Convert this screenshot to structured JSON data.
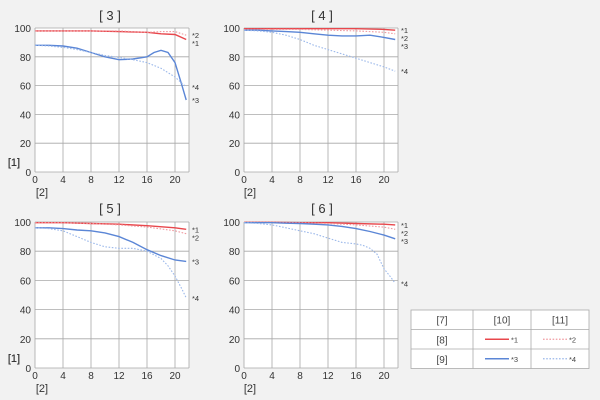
{
  "charts_common": {
    "x_axis_label": "[2]",
    "y_axis_label": "[1]",
    "x_ticks": [
      "0",
      "4",
      "8",
      "12",
      "16",
      "20"
    ],
    "y_ticks": [
      "0",
      "20",
      "40",
      "60",
      "80",
      "100"
    ]
  },
  "colors": {
    "red": "#e8474c",
    "light_red": "#f09aa0",
    "blue": "#5b86d6",
    "light_blue": "#9bb8ea"
  },
  "legend": {
    "header": [
      "[7]",
      "[10]",
      "[11]"
    ],
    "rows": [
      {
        "label": "[8]",
        "solid": "*1",
        "dotted": "*2"
      },
      {
        "label": "[9]",
        "solid": "*3",
        "dotted": "*4"
      }
    ]
  },
  "chart_data": [
    {
      "type": "line",
      "title": "[ 3 ]",
      "xlim": [
        0,
        22
      ],
      "ylim": [
        0,
        100
      ],
      "series": [
        {
          "name": "*1",
          "style": "solid",
          "color": "red",
          "x": [
            0,
            4,
            8,
            12,
            16,
            18,
            20,
            21.6
          ],
          "y": [
            98,
            98,
            98,
            97.5,
            97,
            96,
            95.5,
            92
          ]
        },
        {
          "name": "*2",
          "style": "dotted",
          "color": "light_red",
          "x": [
            0,
            4,
            8,
            12,
            16,
            18,
            20,
            21.6
          ],
          "y": [
            98,
            98,
            98,
            98,
            97,
            97.5,
            97.5,
            95
          ]
        },
        {
          "name": "*3",
          "style": "solid",
          "color": "blue",
          "x": [
            0,
            2,
            4,
            6,
            8,
            10,
            12,
            14,
            16,
            17,
            18,
            19,
            20,
            21,
            21.6
          ],
          "y": [
            88,
            88,
            87.5,
            86,
            83,
            80,
            78,
            78.5,
            80,
            83,
            84.5,
            83,
            76,
            60,
            50
          ]
        },
        {
          "name": "*4",
          "style": "dotted",
          "color": "light_blue",
          "x": [
            0,
            2,
            4,
            6,
            8,
            10,
            12,
            14,
            16,
            18,
            20,
            21.6
          ],
          "y": [
            88,
            87.5,
            86.5,
            85,
            83,
            81,
            79.5,
            78,
            76,
            72,
            66,
            59
          ]
        }
      ]
    },
    {
      "type": "line",
      "title": "[ 4 ]",
      "xlim": [
        0,
        22
      ],
      "ylim": [
        0,
        100
      ],
      "series": [
        {
          "name": "*1",
          "style": "solid",
          "color": "red",
          "x": [
            0,
            4,
            8,
            12,
            16,
            20,
            21.6
          ],
          "y": [
            99.5,
            99.5,
            99.5,
            99.5,
            99.5,
            99,
            98.5
          ]
        },
        {
          "name": "*2",
          "style": "dotted",
          "color": "light_red",
          "x": [
            0,
            4,
            8,
            12,
            16,
            20,
            21.6
          ],
          "y": [
            99,
            99,
            99,
            98.5,
            98,
            97,
            96
          ]
        },
        {
          "name": "*3",
          "style": "solid",
          "color": "blue",
          "x": [
            0,
            2,
            4,
            6,
            8,
            10,
            12,
            14,
            16,
            18,
            20,
            21.6
          ],
          "y": [
            98.5,
            98.5,
            98,
            97.5,
            97,
            96,
            95,
            94.5,
            94.5,
            95,
            93.5,
            92
          ]
        },
        {
          "name": "*4",
          "style": "dotted",
          "color": "light_blue",
          "x": [
            0,
            2,
            4,
            6,
            8,
            10,
            12,
            14,
            16,
            18,
            20,
            21.6
          ],
          "y": [
            98.5,
            98,
            97,
            95,
            92,
            88,
            85,
            82,
            79,
            76,
            73,
            70
          ]
        }
      ]
    },
    {
      "type": "line",
      "title": "[ 5 ]",
      "xlim": [
        0,
        22
      ],
      "ylim": [
        0,
        100
      ],
      "series": [
        {
          "name": "*1",
          "style": "solid",
          "color": "red",
          "x": [
            0,
            4,
            8,
            12,
            16,
            20,
            21.6
          ],
          "y": [
            99.5,
            99.5,
            99,
            98.5,
            97.5,
            96,
            95
          ]
        },
        {
          "name": "*2",
          "style": "dotted",
          "color": "light_red",
          "x": [
            0,
            4,
            8,
            12,
            16,
            20,
            21.6
          ],
          "y": [
            99.5,
            99.5,
            99,
            98,
            96.5,
            94,
            92
          ]
        },
        {
          "name": "*3",
          "style": "solid",
          "color": "blue",
          "x": [
            0,
            2,
            4,
            6,
            8,
            10,
            12,
            14,
            16,
            18,
            20,
            21.6
          ],
          "y": [
            96,
            96,
            95.5,
            94.5,
            94,
            92.5,
            90,
            86,
            81,
            77,
            74,
            73
          ]
        },
        {
          "name": "*4",
          "style": "dotted",
          "color": "light_blue",
          "x": [
            0,
            2,
            4,
            6,
            8,
            10,
            12,
            14,
            16,
            18,
            19,
            20,
            21,
            21.6
          ],
          "y": [
            96,
            95.5,
            94,
            90,
            86,
            83,
            82,
            82,
            80,
            75,
            70,
            63,
            54,
            48
          ]
        }
      ]
    },
    {
      "type": "line",
      "title": "[ 6 ]",
      "xlim": [
        0,
        22
      ],
      "ylim": [
        0,
        100
      ],
      "series": [
        {
          "name": "*1",
          "style": "solid",
          "color": "red",
          "x": [
            0,
            4,
            8,
            12,
            16,
            20,
            21.6
          ],
          "y": [
            99.8,
            99.8,
            99.5,
            99.5,
            99,
            98.5,
            98
          ]
        },
        {
          "name": "*2",
          "style": "dotted",
          "color": "light_red",
          "x": [
            0,
            4,
            8,
            12,
            16,
            20,
            21.6
          ],
          "y": [
            99.8,
            99.8,
            99.5,
            99,
            98,
            96.5,
            95
          ]
        },
        {
          "name": "*3",
          "style": "solid",
          "color": "blue",
          "x": [
            0,
            2,
            4,
            6,
            8,
            10,
            12,
            14,
            16,
            18,
            20,
            21.6
          ],
          "y": [
            99.5,
            99.5,
            99.5,
            99.2,
            99,
            98.5,
            98,
            97,
            95.5,
            93.5,
            91,
            88.5
          ]
        },
        {
          "name": "*4",
          "style": "dotted",
          "color": "light_blue",
          "x": [
            0,
            2,
            4,
            6,
            8,
            10,
            12,
            14,
            16,
            17,
            18,
            19,
            20,
            21,
            21.6
          ],
          "y": [
            99.5,
            99,
            98,
            96,
            94,
            92,
            89,
            86,
            85,
            84,
            82,
            78,
            68,
            62,
            58
          ]
        }
      ]
    }
  ]
}
